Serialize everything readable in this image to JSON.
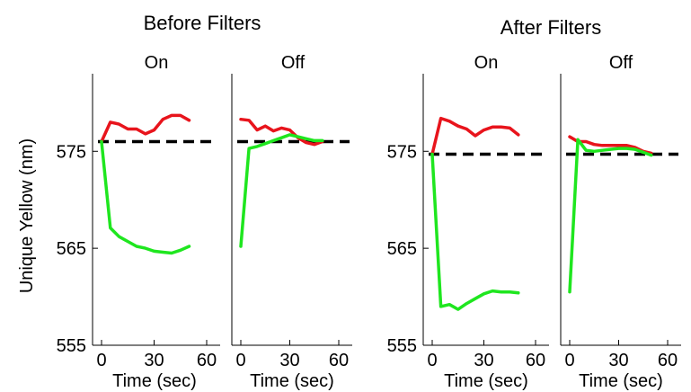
{
  "chart_data": {
    "type": "line",
    "ylabel": "Unique Yellow (nm)",
    "xlabel": "Time (sec)",
    "xlim": [
      0,
      60
    ],
    "ylim": [
      555,
      583
    ],
    "xticks": [
      0,
      30,
      60
    ],
    "yticks": [
      555,
      565,
      575
    ],
    "grid": false,
    "colors": {
      "red": "#e8141c",
      "green": "#1fe61f",
      "reference": "#000000"
    },
    "groups": [
      {
        "title": "Before Filters",
        "panels": [
          {
            "title": "On",
            "reference": 576.0,
            "series": [
              {
                "color": "red",
                "x": [
                  0,
                  5,
                  10,
                  15,
                  20,
                  25,
                  30,
                  35,
                  40,
                  45,
                  50
                ],
                "y": [
                  576.0,
                  578.0,
                  577.8,
                  577.3,
                  577.3,
                  576.8,
                  577.2,
                  578.3,
                  578.7,
                  578.7,
                  578.2
                ]
              },
              {
                "color": "green",
                "x": [
                  0,
                  5,
                  10,
                  15,
                  20,
                  25,
                  30,
                  35,
                  40,
                  45,
                  50
                ],
                "y": [
                  576.0,
                  567.1,
                  566.2,
                  565.7,
                  565.2,
                  565.0,
                  564.7,
                  564.6,
                  564.5,
                  564.8,
                  565.2
                ]
              }
            ]
          },
          {
            "title": "Off",
            "reference": 576.0,
            "series": [
              {
                "color": "red",
                "x": [
                  0,
                  5,
                  10,
                  15,
                  20,
                  25,
                  30,
                  35,
                  40,
                  45,
                  50
                ],
                "y": [
                  578.3,
                  578.2,
                  577.2,
                  577.6,
                  577.1,
                  577.4,
                  577.2,
                  576.4,
                  575.9,
                  575.7,
                  576.0
                ]
              },
              {
                "color": "green",
                "x": [
                  0,
                  5,
                  10,
                  15,
                  20,
                  25,
                  30,
                  35,
                  40,
                  45,
                  50
                ],
                "y": [
                  565.2,
                  575.3,
                  575.5,
                  575.8,
                  576.1,
                  576.4,
                  576.7,
                  576.5,
                  576.3,
                  576.1,
                  576.1
                ]
              }
            ]
          }
        ]
      },
      {
        "title": "After Filters",
        "panels": [
          {
            "title": "On",
            "reference": 574.7,
            "series": [
              {
                "color": "red",
                "x": [
                  0,
                  5,
                  10,
                  15,
                  20,
                  25,
                  30,
                  35,
                  40,
                  45,
                  50
                ],
                "y": [
                  574.7,
                  578.4,
                  578.1,
                  577.6,
                  577.3,
                  576.6,
                  577.2,
                  577.5,
                  577.5,
                  577.4,
                  576.7
                ]
              },
              {
                "color": "green",
                "x": [
                  0,
                  5,
                  10,
                  15,
                  20,
                  25,
                  30,
                  35,
                  40,
                  45,
                  50
                ],
                "y": [
                  574.7,
                  559.0,
                  559.2,
                  558.7,
                  559.3,
                  559.8,
                  560.3,
                  560.6,
                  560.5,
                  560.5,
                  560.4
                ]
              }
            ]
          },
          {
            "title": "Off",
            "reference": 574.7,
            "series": [
              {
                "color": "red",
                "x": [
                  0,
                  5,
                  10,
                  15,
                  20,
                  25,
                  30,
                  35,
                  40,
                  45,
                  50
                ],
                "y": [
                  576.5,
                  576.0,
                  576.0,
                  575.7,
                  575.6,
                  575.6,
                  575.6,
                  575.6,
                  575.4,
                  575.0,
                  574.8
                ]
              },
              {
                "color": "green",
                "x": [
                  0,
                  5,
                  10,
                  15,
                  20,
                  25,
                  30,
                  35,
                  40,
                  45,
                  50
                ],
                "y": [
                  560.5,
                  576.2,
                  575.1,
                  575.0,
                  575.1,
                  575.2,
                  575.3,
                  575.3,
                  575.2,
                  574.9,
                  574.6
                ]
              }
            ]
          }
        ]
      }
    ]
  }
}
